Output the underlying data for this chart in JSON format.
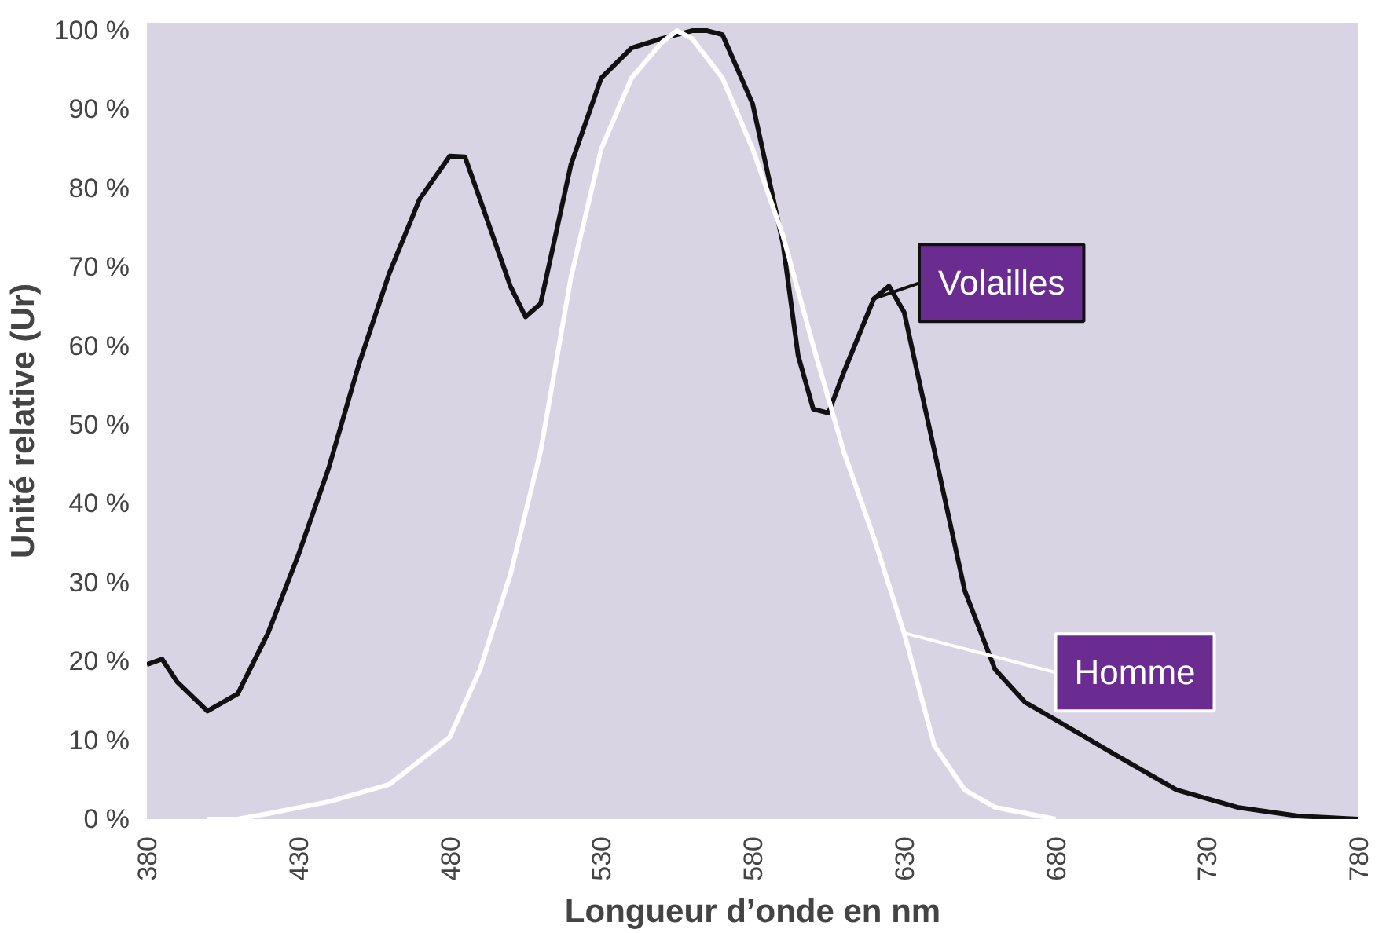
{
  "chart_data": {
    "type": "line",
    "xlabel": "Longueur d’onde en nm",
    "ylabel": "Unité relative (Ur)",
    "xlim": [
      380,
      780
    ],
    "xticks": [
      380,
      430,
      480,
      530,
      580,
      630,
      680,
      730,
      780
    ],
    "ylim": [
      0,
      101
    ],
    "yticks": [
      {
        "value": 0,
        "label": "0 %"
      },
      {
        "value": 10,
        "label": "10 %"
      },
      {
        "value": 20,
        "label": "20 %"
      },
      {
        "value": 30,
        "label": "30 %"
      },
      {
        "value": 40,
        "label": "40 %"
      },
      {
        "value": 50,
        "label": "50 %"
      },
      {
        "value": 60,
        "label": "60 %"
      },
      {
        "value": 70,
        "label": "70 %"
      },
      {
        "value": 80,
        "label": "80 %"
      },
      {
        "value": 90,
        "label": "90 %"
      },
      {
        "value": 100,
        "label": "100 %"
      }
    ],
    "grid": false,
    "legend": "right",
    "marker": "none",
    "line_style": "solid",
    "series": [
      {
        "name": "Volailles",
        "color": "#111111",
        "x": [
          380,
          385,
          390,
          400,
          410,
          420,
          430,
          440,
          450,
          460,
          470,
          480,
          485,
          490,
          500,
          505,
          510,
          520,
          530,
          540,
          550,
          560,
          565,
          570,
          580,
          590,
          595,
          600,
          605,
          610,
          620,
          625,
          630,
          640,
          650,
          660,
          670,
          680,
          700,
          720,
          740,
          760,
          780
        ],
        "values": [
          19.6,
          20.3,
          17.4,
          13.7,
          15.9,
          23.6,
          33.5,
          44.5,
          57.7,
          69.2,
          78.6,
          84.1,
          84,
          78.6,
          67.6,
          63.7,
          65.4,
          83,
          94,
          97.8,
          99,
          100,
          100,
          99.5,
          90.7,
          73,
          58.8,
          52,
          51.5,
          56.6,
          66,
          67.6,
          64.3,
          46.7,
          29,
          19,
          14.8,
          12.6,
          8.1,
          3.7,
          1.5,
          0.4,
          0
        ]
      },
      {
        "name": "Homme",
        "color": "#ffffff",
        "x": [
          400,
          410,
          420,
          440,
          460,
          480,
          490,
          500,
          510,
          520,
          530,
          540,
          550,
          555,
          560,
          570,
          580,
          590,
          600,
          610,
          620,
          630,
          640,
          650,
          660,
          680
        ],
        "values": [
          0,
          0,
          0.7,
          2.2,
          4.4,
          10.4,
          19,
          31,
          46.7,
          68.7,
          85,
          94,
          98.5,
          100,
          99,
          94,
          85,
          74,
          60,
          46.7,
          35.7,
          23.6,
          9.3,
          3.7,
          1.5,
          0
        ]
      }
    ]
  }
}
